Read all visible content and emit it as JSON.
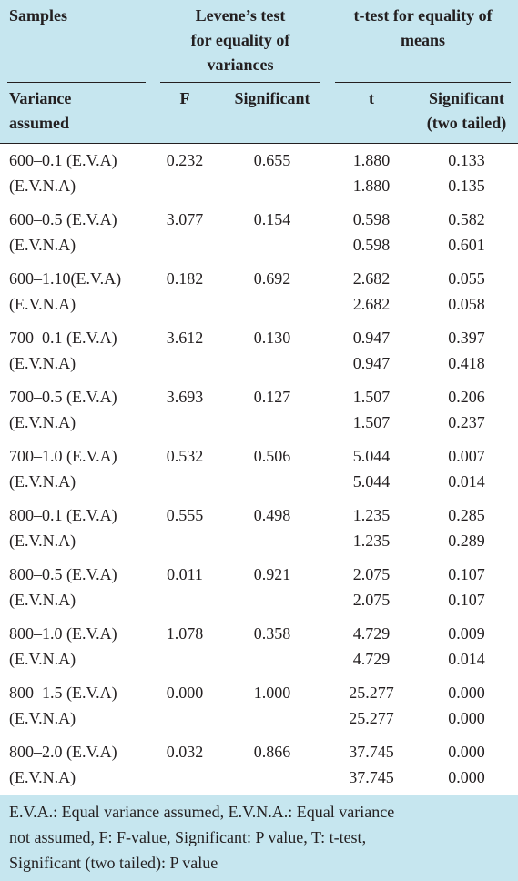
{
  "header": {
    "samples": "Samples",
    "levene_line1": "Levene’s test",
    "levene_line2": "for equality of",
    "levene_line3": "variances",
    "ttest_line1": "t-test for equality of",
    "ttest_line2": "means",
    "variance_line1": "Variance",
    "variance_line2": "assumed",
    "f": "F",
    "significant": "Significant",
    "t": "t",
    "sig2_line1": "Significant",
    "sig2_line2": "(two tailed)"
  },
  "rows": [
    {
      "a": "600–0.1 (E.V.A)",
      "b": "(E.V.N.A)",
      "f": "0.232",
      "sig": "0.655",
      "t1": "1.880",
      "t2": "1.880",
      "s1": "0.133",
      "s2": "0.135"
    },
    {
      "a": "600–0.5 (E.V.A)",
      "b": "(E.V.N.A)",
      "f": "3.077",
      "sig": "0.154",
      "t1": "0.598",
      "t2": "0.598",
      "s1": "0.582",
      "s2": "0.601"
    },
    {
      "a": "600–1.10(E.V.A)",
      "b": "(E.V.N.A)",
      "f": "0.182",
      "sig": "0.692",
      "t1": "2.682",
      "t2": "2.682",
      "s1": "0.055",
      "s2": "0.058"
    },
    {
      "a": "700–0.1 (E.V.A)",
      "b": "(E.V.N.A)",
      "f": "3.612",
      "sig": "0.130",
      "t1": "0.947",
      "t2": "0.947",
      "s1": "0.397",
      "s2": "0.418"
    },
    {
      "a": "700–0.5 (E.V.A)",
      "b": "(E.V.N.A)",
      "f": "3.693",
      "sig": "0.127",
      "t1": "1.507",
      "t2": "1.507",
      "s1": "0.206",
      "s2": "0.237"
    },
    {
      "a": "700–1.0 (E.V.A)",
      "b": "(E.V.N.A)",
      "f": "0.532",
      "sig": "0.506",
      "t1": "5.044",
      "t2": "5.044",
      "s1": "0.007",
      "s2": "0.014"
    },
    {
      "a": "800–0.1 (E.V.A)",
      "b": "(E.V.N.A)",
      "f": "0.555",
      "sig": "0.498",
      "t1": "1.235",
      "t2": "1.235",
      "s1": "0.285",
      "s2": "0.289"
    },
    {
      "a": "800–0.5 (E.V.A)",
      "b": "(E.V.N.A)",
      "f": "0.011",
      "sig": "0.921",
      "t1": "2.075",
      "t2": "2.075",
      "s1": "0.107",
      "s2": "0.107"
    },
    {
      "a": "800–1.0 (E.V.A)",
      "b": "(E.V.N.A)",
      "f": "1.078",
      "sig": "0.358",
      "t1": "4.729",
      "t2": "4.729",
      "s1": "0.009",
      "s2": "0.014"
    },
    {
      "a": "800–1.5 (E.V.A)",
      "b": "(E.V.N.A)",
      "f": "0.000",
      "sig": "1.000",
      "t1": "25.277",
      "t2": "25.277",
      "s1": "0.000",
      "s2": "0.000"
    },
    {
      "a": "800–2.0 (E.V.A)",
      "b": "(E.V.N.A)",
      "f": "0.032",
      "sig": "0.866",
      "t1": "37.745",
      "t2": "37.745",
      "s1": "0.000",
      "s2": "0.000"
    }
  ],
  "footnote": {
    "line1": "E.V.A.: Equal variance assumed, E.V.N.A.: Equal variance",
    "line2": "not assumed, F: F-value, Significant: P value, T: t-test,",
    "line3": "Significant (two tailed): P value"
  }
}
